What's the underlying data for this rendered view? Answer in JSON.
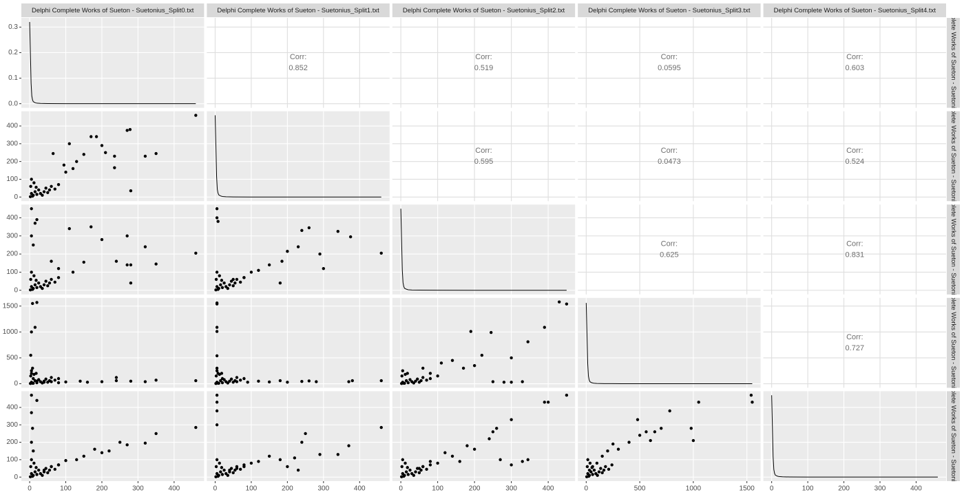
{
  "variables": [
    "Delphi Complete Works of Sueton - Suetonius_Split0.txt",
    "Delphi Complete Works of Sueton - Suetonius_Split1.txt",
    "Delphi Complete Works of Sueton - Suetonius_Split2.txt",
    "Delphi Complete Works of Sueton - Suetonius_Split3.txt",
    "Delphi Complete Works of Sueton - Suetonius_Split4.txt"
  ],
  "x_axes": [
    {
      "xlim": [
        -23,
        483
      ],
      "xticks": [
        0,
        100,
        200,
        300,
        400
      ]
    },
    {
      "xlim": [
        -23,
        483
      ],
      "xticks": [
        0,
        100,
        200,
        300,
        400
      ]
    },
    {
      "xlim": [
        -23,
        473
      ],
      "xticks": [
        0,
        100,
        200,
        300,
        400
      ]
    },
    {
      "xlim": [
        -78,
        1628
      ],
      "xticks": [
        0,
        500,
        1000,
        1500
      ]
    },
    {
      "xlim": [
        -23,
        483
      ],
      "xticks": [
        0,
        100,
        200,
        300,
        400
      ]
    }
  ],
  "y_axes": [
    {
      "ylim": [
        -0.016,
        0.336
      ],
      "yticks": [
        {
          "value": 0,
          "label": "0.0"
        },
        0.1,
        0.2,
        0.3
      ]
    },
    {
      "ylim": [
        -23,
        483
      ],
      "yticks": [
        0,
        100,
        200,
        300,
        400
      ]
    },
    {
      "ylim": [
        -23,
        473
      ],
      "yticks": [
        0,
        100,
        200,
        300,
        400
      ]
    },
    {
      "ylim": [
        -78,
        1658
      ],
      "yticks": [
        0,
        500,
        1000,
        1500
      ]
    },
    {
      "ylim": [
        -23,
        493
      ],
      "yticks": [
        0,
        100,
        200,
        300,
        400
      ]
    }
  ],
  "chart_data": [
    {
      "type": "line",
      "color": "#000000",
      "x": [
        0,
        2,
        4,
        6,
        8,
        10,
        15,
        20,
        30,
        50,
        100,
        200,
        300,
        460
      ],
      "values": [
        0.32,
        0.2,
        0.08,
        0.03,
        0.015,
        0.008,
        0.004,
        0.002,
        0.001,
        0.0005,
        0.0002,
        0.0001,
        0,
        0
      ]
    },
    {
      "type": "corr",
      "label": "Corr:",
      "value": 0.852
    },
    {
      "type": "corr",
      "label": "Corr:",
      "value": 0.519
    },
    {
      "type": "corr",
      "label": "Corr:",
      "value": 0.0595
    },
    {
      "type": "corr",
      "label": "Corr:",
      "value": 0.603
    },
    {
      "type": "scatter",
      "color": "#000000",
      "x": [
        130,
        150,
        170,
        185,
        200,
        210,
        235,
        235,
        270,
        278,
        280,
        320,
        350,
        460,
        110,
        65,
        95,
        120,
        100,
        2,
        5,
        10,
        15,
        20,
        25,
        30,
        35,
        40,
        45,
        50,
        55,
        60,
        70,
        80,
        3,
        5,
        12,
        8,
        18
      ],
      "values": [
        200,
        240,
        340,
        340,
        290,
        250,
        230,
        165,
        375,
        380,
        35,
        230,
        245,
        460,
        300,
        245,
        180,
        160,
        140,
        2,
        20,
        10,
        30,
        15,
        40,
        20,
        10,
        30,
        50,
        25,
        40,
        60,
        45,
        70,
        60,
        100,
        80,
        5,
        55
      ]
    },
    {
      "type": "line",
      "color": "#000000",
      "x": [
        0,
        2,
        4,
        6,
        8,
        10,
        15,
        20,
        30,
        50,
        100,
        200,
        300,
        460
      ],
      "values": [
        460,
        290,
        115,
        43,
        22,
        12,
        6,
        3,
        1.5,
        0.7,
        0.3,
        0.1,
        0,
        0
      ]
    },
    {
      "type": "corr",
      "label": "Corr:",
      "value": 0.595
    },
    {
      "type": "corr",
      "label": "Corr:",
      "value": 0.0473
    },
    {
      "type": "corr",
      "label": "Corr:",
      "value": 0.524
    },
    {
      "type": "scatter",
      "color": "#000000",
      "x": [
        5,
        20,
        15,
        110,
        170,
        200,
        270,
        320,
        350,
        460,
        280,
        240,
        270,
        280,
        150,
        120,
        5,
        10,
        60,
        80,
        2,
        5,
        10,
        15,
        20,
        25,
        30,
        35,
        40,
        45,
        50,
        55,
        60,
        70,
        80,
        3,
        5,
        12,
        8,
        18
      ],
      "values": [
        450,
        390,
        370,
        340,
        350,
        280,
        300,
        240,
        145,
        205,
        40,
        160,
        140,
        140,
        155,
        100,
        300,
        250,
        160,
        120,
        2,
        20,
        10,
        30,
        15,
        40,
        20,
        10,
        30,
        50,
        25,
        40,
        60,
        45,
        70,
        60,
        100,
        80,
        5,
        55
      ]
    },
    {
      "type": "scatter",
      "color": "#000000",
      "x": [
        5,
        5,
        8,
        240,
        260,
        340,
        375,
        460,
        290,
        300,
        230,
        200,
        185,
        150,
        120,
        100,
        180,
        80,
        50,
        2,
        5,
        10,
        15,
        20,
        25,
        30,
        35,
        40,
        45,
        50,
        55,
        60,
        70,
        80,
        3,
        5,
        12,
        8,
        18
      ],
      "values": [
        450,
        400,
        380,
        330,
        345,
        325,
        295,
        205,
        200,
        120,
        240,
        215,
        160,
        140,
        110,
        100,
        40,
        70,
        60,
        2,
        20,
        10,
        30,
        15,
        40,
        20,
        10,
        30,
        50,
        25,
        40,
        60,
        45,
        70,
        60,
        100,
        80,
        5,
        55
      ]
    },
    {
      "type": "line",
      "color": "#000000",
      "x": [
        0,
        2,
        4,
        6,
        8,
        10,
        15,
        20,
        30,
        50,
        100,
        200,
        300,
        450
      ],
      "values": [
        450,
        280,
        112,
        42,
        21,
        11,
        6,
        3,
        1.5,
        0.7,
        0.3,
        0.1,
        0,
        0
      ]
    },
    {
      "type": "corr",
      "label": "Corr:",
      "value": 0.625
    },
    {
      "type": "corr",
      "label": "Corr:",
      "value": 0.831
    },
    {
      "type": "scatter",
      "color": "#000000",
      "x": [
        8,
        20,
        5,
        15,
        3,
        8,
        5,
        10,
        60,
        100,
        140,
        200,
        240,
        240,
        280,
        320,
        350,
        460,
        40,
        80,
        20,
        160,
        2,
        5,
        10,
        15,
        20,
        25,
        30,
        35,
        40,
        45,
        50,
        55,
        60,
        70,
        80,
        3,
        5,
        12,
        8,
        18
      ],
      "values": [
        1550,
        1570,
        1000,
        1090,
        550,
        300,
        200,
        100,
        40,
        35,
        50,
        40,
        120,
        60,
        50,
        40,
        70,
        60,
        30,
        20,
        50,
        30,
        5,
        30,
        10,
        60,
        20,
        80,
        40,
        15,
        50,
        90,
        30,
        60,
        120,
        70,
        100,
        150,
        250,
        180,
        10,
        200
      ]
    },
    {
      "type": "scatter",
      "color": "#000000",
      "x": [
        5,
        5,
        5,
        5,
        5,
        5,
        8,
        20,
        60,
        120,
        180,
        240,
        260,
        280,
        370,
        380,
        460,
        90,
        150,
        200,
        2,
        5,
        10,
        15,
        20,
        25,
        30,
        35,
        40,
        45,
        50,
        55,
        60,
        70,
        80,
        3,
        5,
        12,
        8,
        18
      ],
      "values": [
        1560,
        1540,
        1090,
        1010,
        540,
        300,
        200,
        100,
        40,
        50,
        60,
        45,
        55,
        40,
        40,
        60,
        60,
        30,
        35,
        30,
        5,
        30,
        10,
        60,
        20,
        80,
        40,
        15,
        50,
        90,
        30,
        60,
        120,
        70,
        100,
        150,
        250,
        180,
        10,
        200
      ]
    },
    {
      "type": "scatter",
      "color": "#000000",
      "x": [
        430,
        450,
        390,
        345,
        245,
        190,
        300,
        220,
        200,
        140,
        170,
        110,
        60,
        80,
        100,
        250,
        300,
        330,
        280,
        2,
        5,
        10,
        15,
        20,
        25,
        30,
        35,
        40,
        45,
        50,
        55,
        60,
        70,
        80,
        3,
        5,
        12,
        8,
        18
      ],
      "values": [
        1580,
        1540,
        1090,
        810,
        990,
        1010,
        500,
        550,
        350,
        450,
        300,
        400,
        300,
        200,
        150,
        40,
        30,
        40,
        30,
        5,
        30,
        10,
        60,
        20,
        80,
        40,
        15,
        50,
        90,
        30,
        60,
        120,
        70,
        100,
        150,
        250,
        180,
        10,
        200
      ]
    },
    {
      "type": "line",
      "color": "#000000",
      "x": [
        0,
        7,
        14,
        21,
        28,
        35,
        50,
        70,
        100,
        170,
        330,
        670,
        1000,
        1550
      ],
      "values": [
        1560,
        980,
        390,
        145,
        73,
        39,
        20,
        10,
        5,
        2.3,
        1,
        0.3,
        0,
        0
      ]
    },
    {
      "type": "corr",
      "label": "Corr:",
      "value": 0.727
    },
    {
      "type": "scatter",
      "color": "#000000",
      "x": [
        5,
        20,
        5,
        8,
        250,
        270,
        320,
        350,
        460,
        200,
        180,
        150,
        130,
        100,
        80,
        60,
        40,
        220,
        5,
        10,
        2,
        5,
        10,
        15,
        20,
        25,
        30,
        35,
        40,
        45,
        50,
        55,
        60,
        70,
        80,
        3,
        5,
        12,
        8,
        18
      ],
      "values": [
        470,
        440,
        370,
        280,
        200,
        185,
        195,
        250,
        285,
        140,
        160,
        120,
        100,
        95,
        70,
        60,
        40,
        150,
        200,
        150,
        2,
        20,
        10,
        30,
        15,
        40,
        20,
        10,
        30,
        50,
        25,
        40,
        60,
        45,
        70,
        60,
        100,
        80,
        5,
        55
      ]
    },
    {
      "type": "scatter",
      "color": "#000000",
      "x": [
        5,
        5,
        5,
        5,
        240,
        250,
        340,
        370,
        460,
        290,
        220,
        180,
        150,
        120,
        100,
        80,
        60,
        40,
        200,
        230,
        2,
        5,
        10,
        15,
        20,
        25,
        30,
        35,
        40,
        45,
        50,
        55,
        60,
        70,
        80,
        3,
        5,
        12,
        8,
        18
      ],
      "values": [
        470,
        430,
        380,
        300,
        200,
        250,
        130,
        180,
        285,
        130,
        110,
        100,
        120,
        90,
        80,
        60,
        50,
        40,
        60,
        40,
        2,
        20,
        10,
        30,
        15,
        40,
        20,
        10,
        30,
        50,
        25,
        40,
        60,
        45,
        70,
        60,
        100,
        80,
        5,
        55
      ]
    },
    {
      "type": "scatter",
      "color": "#000000",
      "x": [
        390,
        400,
        450,
        345,
        330,
        300,
        260,
        250,
        240,
        200,
        180,
        160,
        140,
        120,
        100,
        80,
        60,
        50,
        300,
        270,
        2,
        5,
        10,
        15,
        20,
        25,
        30,
        35,
        40,
        45,
        50,
        55,
        60,
        70,
        80,
        3,
        5,
        12,
        8,
        18
      ],
      "values": [
        430,
        430,
        470,
        100,
        90,
        330,
        280,
        260,
        220,
        160,
        180,
        90,
        120,
        140,
        80,
        90,
        60,
        50,
        70,
        100,
        2,
        20,
        10,
        30,
        15,
        40,
        20,
        10,
        30,
        50,
        25,
        40,
        60,
        45,
        70,
        60,
        100,
        80,
        5,
        55
      ]
    },
    {
      "type": "scatter",
      "color": "#000000",
      "x": [
        1540,
        1550,
        1050,
        1000,
        980,
        780,
        640,
        560,
        480,
        400,
        300,
        250,
        200,
        150,
        100,
        60,
        30,
        500,
        600,
        700,
        5,
        15,
        30,
        45,
        60,
        75,
        90,
        105,
        120,
        135,
        150,
        165,
        180,
        210,
        240,
        10,
        15,
        36,
        24,
        54
      ],
      "values": [
        470,
        430,
        430,
        210,
        280,
        380,
        260,
        260,
        330,
        200,
        160,
        190,
        150,
        120,
        80,
        60,
        40,
        240,
        210,
        280,
        2,
        20,
        10,
        30,
        15,
        40,
        20,
        10,
        30,
        50,
        25,
        40,
        60,
        45,
        70,
        60,
        100,
        80,
        5,
        55
      ]
    },
    {
      "type": "line",
      "color": "#000000",
      "x": [
        0,
        2,
        4,
        6,
        8,
        10,
        15,
        20,
        30,
        50,
        100,
        200,
        300,
        460
      ],
      "values": [
        470,
        295,
        118,
        44,
        22,
        12,
        6,
        3,
        1.5,
        0.7,
        0.3,
        0.1,
        0,
        0
      ]
    }
  ]
}
